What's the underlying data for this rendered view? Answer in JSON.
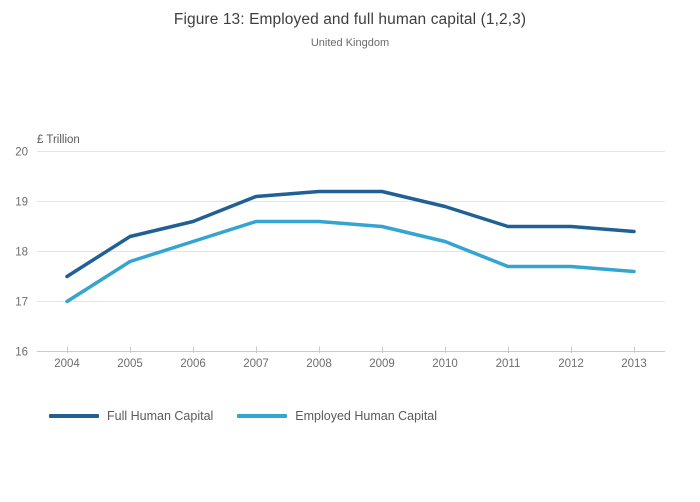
{
  "chart_data": {
    "type": "line",
    "title": "Figure 13: Employed and full human capital (1,2,3)",
    "subtitle": "United Kingdom",
    "ylabel": "£ Trillion",
    "x": [
      2004,
      2005,
      2006,
      2007,
      2008,
      2009,
      2010,
      2011,
      2012,
      2013
    ],
    "series": [
      {
        "name": "Full Human Capital",
        "color": "#206095",
        "values": [
          17.5,
          18.3,
          18.6,
          19.1,
          19.2,
          19.2,
          18.9,
          18.5,
          18.5,
          18.4
        ]
      },
      {
        "name": "Employed Human Capital",
        "color": "#34a4d2",
        "values": [
          17.0,
          17.8,
          18.2,
          18.6,
          18.6,
          18.5,
          18.2,
          17.7,
          17.7,
          17.6
        ]
      }
    ],
    "ylim": [
      16,
      20
    ],
    "yticks": [
      16,
      17,
      18,
      19,
      20
    ],
    "grid": true,
    "legend_position": "bottom-left"
  },
  "colors": {
    "grid": "#e4e4e4",
    "axis": "#c3ccd2",
    "tick_label": "#6e6e6e",
    "title": "#3e3e3e",
    "subtitle": "#6b6b6b",
    "series_full": "#206095",
    "series_employed": "#34a4d2"
  }
}
